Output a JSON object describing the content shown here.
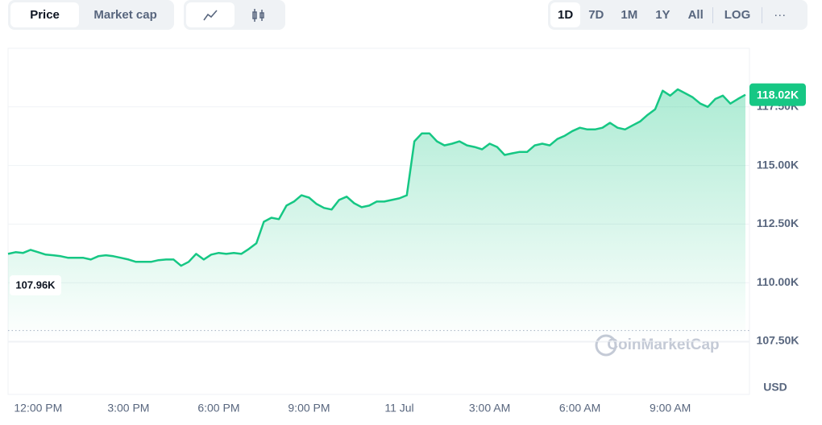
{
  "toolbar": {
    "metrics": [
      "Price",
      "Market cap"
    ],
    "ranges": [
      "1D",
      "7D",
      "1M",
      "1Y",
      "All"
    ],
    "log": "LOG",
    "more": "···"
  },
  "chart_data": {
    "type": "area",
    "color": "#16c784",
    "watermark": "CoinMarketCap",
    "currency": "USD",
    "categories": [
      null,
      null,
      null,
      null,
      "12:00 PM",
      null,
      null,
      null,
      null,
      null,
      null,
      null,
      null,
      null,
      null,
      null,
      "3:00 PM",
      null,
      null,
      null,
      null,
      null,
      null,
      null,
      null,
      null,
      null,
      null,
      "6:00 PM",
      null,
      null,
      null,
      null,
      null,
      null,
      null,
      null,
      null,
      null,
      null,
      "9:00 PM",
      null,
      null,
      null,
      null,
      null,
      null,
      null,
      null,
      null,
      null,
      null,
      "11 Jul",
      null,
      null,
      null,
      null,
      null,
      null,
      null,
      null,
      null,
      null,
      null,
      "3:00 AM",
      null,
      null,
      null,
      null,
      null,
      null,
      null,
      null,
      null,
      null,
      null,
      "6:00 AM",
      null,
      null,
      null,
      null,
      null,
      null,
      null,
      null,
      null,
      null,
      null,
      "9:00 AM",
      null,
      null,
      null,
      null,
      null,
      null,
      null,
      null,
      null,
      null
    ],
    "values": [
      111230,
      111300,
      111270,
      111400,
      111300,
      111200,
      111170,
      111130,
      111060,
      111060,
      111060,
      110990,
      111130,
      111170,
      111130,
      111060,
      110990,
      110890,
      110890,
      110890,
      110960,
      110990,
      110990,
      110720,
      110890,
      111230,
      110990,
      111200,
      111270,
      111230,
      111270,
      111230,
      111440,
      111680,
      112600,
      112770,
      112710,
      113290,
      113460,
      113730,
      113630,
      113360,
      113190,
      113120,
      113530,
      113670,
      113390,
      113220,
      113290,
      113460,
      113460,
      113530,
      113600,
      113730,
      116030,
      116370,
      116370,
      116030,
      115860,
      115930,
      116030,
      115860,
      115790,
      115690,
      115930,
      115790,
      115450,
      115520,
      115580,
      115580,
      115860,
      115930,
      115860,
      116130,
      116270,
      116470,
      116610,
      116540,
      116540,
      116610,
      116820,
      116610,
      116540,
      116710,
      116880,
      117160,
      117400,
      118190,
      117980,
      118250,
      118080,
      117910,
      117640,
      117500,
      117840,
      117980,
      117640,
      117840,
      118020
    ],
    "ylim": [
      107500,
      120000
    ],
    "yticks": [
      {
        "value": 107500,
        "label": "107.50K"
      },
      {
        "value": 110000,
        "label": "110.00K"
      },
      {
        "value": 112500,
        "label": "112.50K"
      },
      {
        "value": 115000,
        "label": "115.00K"
      },
      {
        "value": 117500,
        "label": "117.50K"
      }
    ],
    "grid": true,
    "current_price": {
      "value": 118020,
      "label": "118.02K"
    },
    "open_price": {
      "value": 107960,
      "label": "107.96K"
    }
  }
}
